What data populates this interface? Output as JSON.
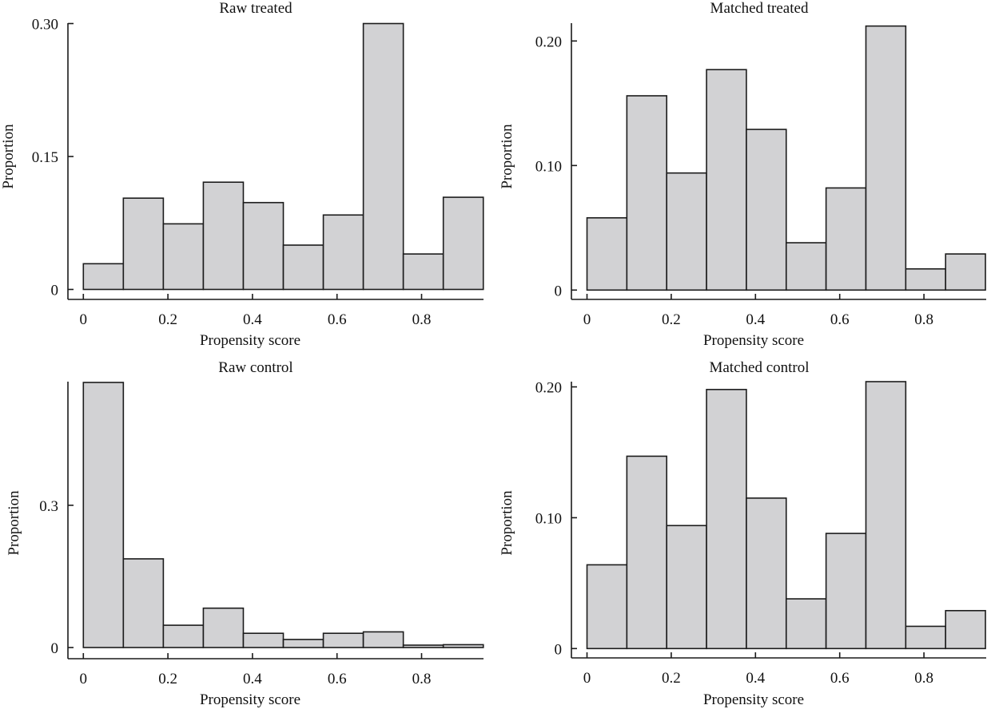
{
  "chart_data": [
    {
      "type": "bar",
      "panel": "top-left",
      "title": "Raw treated",
      "xlabel": "Propensity score",
      "ylabel": "Proportion",
      "bin_edges": [
        0.0,
        0.0946,
        0.1892,
        0.2838,
        0.3784,
        0.473,
        0.5676,
        0.6622,
        0.7568,
        0.8514,
        0.946
      ],
      "values": [
        0.029,
        0.103,
        0.074,
        0.121,
        0.098,
        0.05,
        0.084,
        0.3,
        0.04,
        0.104
      ],
      "xlim": [
        -0.035,
        0.946
      ],
      "ylim": [
        0,
        0.3
      ],
      "xticks": [
        0,
        0.2,
        0.4,
        0.6,
        0.8
      ],
      "xtick_labels": [
        "0",
        "0.2",
        "0.4",
        "0.6",
        "0.8"
      ],
      "yticks": [
        0,
        0.15,
        0.3
      ],
      "ytick_labels": [
        "0",
        "0.15",
        "0.30"
      ],
      "grid": false
    },
    {
      "type": "bar",
      "panel": "top-right",
      "title": "Matched treated",
      "xlabel": "Propensity score",
      "ylabel": "Proportion",
      "bin_edges": [
        0.0,
        0.0946,
        0.1892,
        0.2838,
        0.3784,
        0.473,
        0.5676,
        0.6622,
        0.7568,
        0.8514,
        0.946
      ],
      "values": [
        0.058,
        0.156,
        0.094,
        0.177,
        0.129,
        0.038,
        0.082,
        0.212,
        0.017,
        0.029
      ],
      "xlim": [
        -0.035,
        0.946
      ],
      "ylim": [
        0,
        0.214
      ],
      "xticks": [
        0,
        0.2,
        0.4,
        0.6,
        0.8
      ],
      "xtick_labels": [
        "0",
        "0.2",
        "0.4",
        "0.6",
        "0.8"
      ],
      "yticks": [
        0,
        0.1,
        0.2
      ],
      "ytick_labels": [
        "0",
        "0.10",
        "0.20"
      ],
      "grid": false
    },
    {
      "type": "bar",
      "panel": "bottom-left",
      "title": "Raw control",
      "xlabel": "Propensity score",
      "ylabel": "Proportion",
      "bin_edges": [
        0.0,
        0.0946,
        0.1892,
        0.2838,
        0.3784,
        0.473,
        0.5676,
        0.6622,
        0.7568,
        0.8514,
        0.946
      ],
      "values": [
        0.559,
        0.187,
        0.047,
        0.083,
        0.03,
        0.017,
        0.03,
        0.033,
        0.005,
        0.006
      ],
      "xlim": [
        -0.035,
        0.946
      ],
      "ylim": [
        0,
        0.559
      ],
      "xticks": [
        0,
        0.2,
        0.4,
        0.6,
        0.8
      ],
      "xtick_labels": [
        "0",
        "0.2",
        "0.4",
        "0.6",
        "0.8"
      ],
      "yticks": [
        0,
        0.3
      ],
      "ytick_labels": [
        "0",
        "0.3"
      ],
      "grid": false
    },
    {
      "type": "bar",
      "panel": "bottom-right",
      "title": "Matched control",
      "xlabel": "Propensity score",
      "ylabel": "Proportion",
      "bin_edges": [
        0.0,
        0.0946,
        0.1892,
        0.2838,
        0.3784,
        0.473,
        0.5676,
        0.6622,
        0.7568,
        0.8514,
        0.946
      ],
      "values": [
        0.064,
        0.147,
        0.094,
        0.198,
        0.115,
        0.038,
        0.088,
        0.204,
        0.017,
        0.029
      ],
      "xlim": [
        -0.035,
        0.946
      ],
      "ylim": [
        0,
        0.204
      ],
      "xticks": [
        0,
        0.2,
        0.4,
        0.6,
        0.8
      ],
      "xtick_labels": [
        "0",
        "0.2",
        "0.4",
        "0.6",
        "0.8"
      ],
      "yticks": [
        0,
        0.1,
        0.2
      ],
      "ytick_labels": [
        "0",
        "0.10",
        "0.20"
      ],
      "grid": false
    }
  ]
}
